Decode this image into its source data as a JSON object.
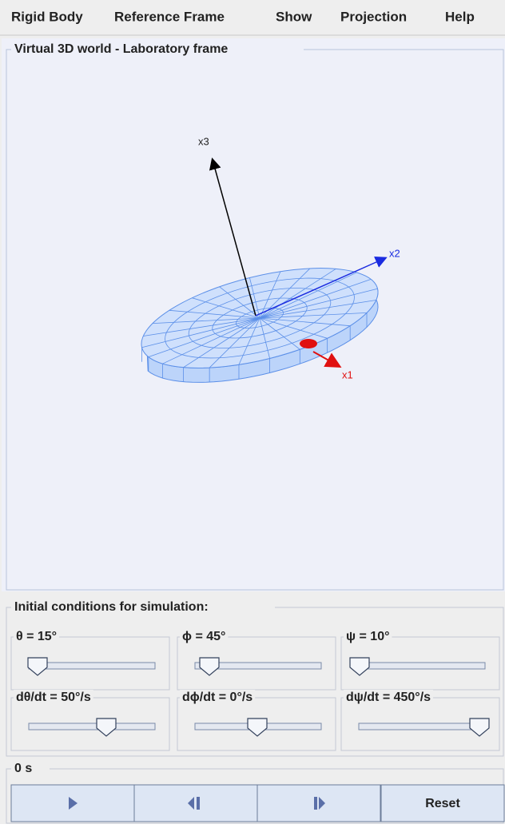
{
  "menu": [
    "Rigid Body",
    "Reference Frame",
    "Show",
    "Projection",
    "Help"
  ],
  "world_panel": {
    "title": "Virtual 3D world - Laboratory frame",
    "axis_labels": {
      "x1": "x1",
      "x2": "x2",
      "x3": "x3"
    }
  },
  "conditions": {
    "title": "Initial conditions for simulation:",
    "sliders": [
      {
        "label": "θ = 15°"
      },
      {
        "label": "ϕ = 45°"
      },
      {
        "label": "ψ = 10°"
      },
      {
        "label": "dθ/dt = 50°/s"
      },
      {
        "label": "dϕ/dt = 0°/s"
      },
      {
        "label": "dψ/dt = 450°/s"
      }
    ]
  },
  "time": {
    "label": "0 s"
  },
  "buttons": {
    "reset": "Reset"
  }
}
